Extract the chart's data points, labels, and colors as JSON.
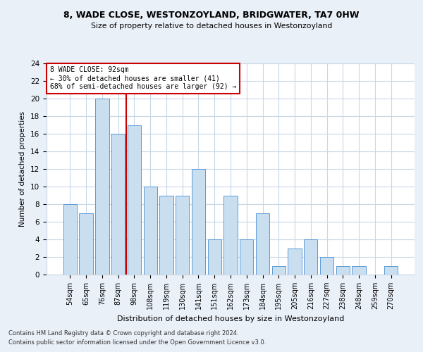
{
  "title1": "8, WADE CLOSE, WESTONZOYLAND, BRIDGWATER, TA7 0HW",
  "title2": "Size of property relative to detached houses in Westonzoyland",
  "xlabel": "Distribution of detached houses by size in Westonzoyland",
  "ylabel": "Number of detached properties",
  "categories": [
    "54sqm",
    "65sqm",
    "76sqm",
    "87sqm",
    "98sqm",
    "108sqm",
    "119sqm",
    "130sqm",
    "141sqm",
    "151sqm",
    "162sqm",
    "173sqm",
    "184sqm",
    "195sqm",
    "205sqm",
    "216sqm",
    "227sqm",
    "238sqm",
    "248sqm",
    "259sqm",
    "270sqm"
  ],
  "values": [
    8,
    7,
    20,
    16,
    17,
    10,
    9,
    9,
    12,
    4,
    9,
    4,
    7,
    1,
    3,
    4,
    2,
    1,
    1,
    0,
    1
  ],
  "bar_color": "#c9dff0",
  "bar_edge_color": "#5b9bd5",
  "annotation_text_line1": "8 WADE CLOSE: 92sqm",
  "annotation_text_line2": "← 30% of detached houses are smaller (41)",
  "annotation_text_line3": "68% of semi-detached houses are larger (92) →",
  "annotation_box_color": "#ffffff",
  "annotation_box_edge": "#cc0000",
  "vline_color": "#cc0000",
  "ylim": [
    0,
    24
  ],
  "yticks": [
    0,
    2,
    4,
    6,
    8,
    10,
    12,
    14,
    16,
    18,
    20,
    22,
    24
  ],
  "footer1": "Contains HM Land Registry data © Crown copyright and database right 2024.",
  "footer2": "Contains public sector information licensed under the Open Government Licence v3.0.",
  "bg_color": "#eaf0f8",
  "plot_bg_color": "#ffffff",
  "grid_color": "#c8d8e8"
}
